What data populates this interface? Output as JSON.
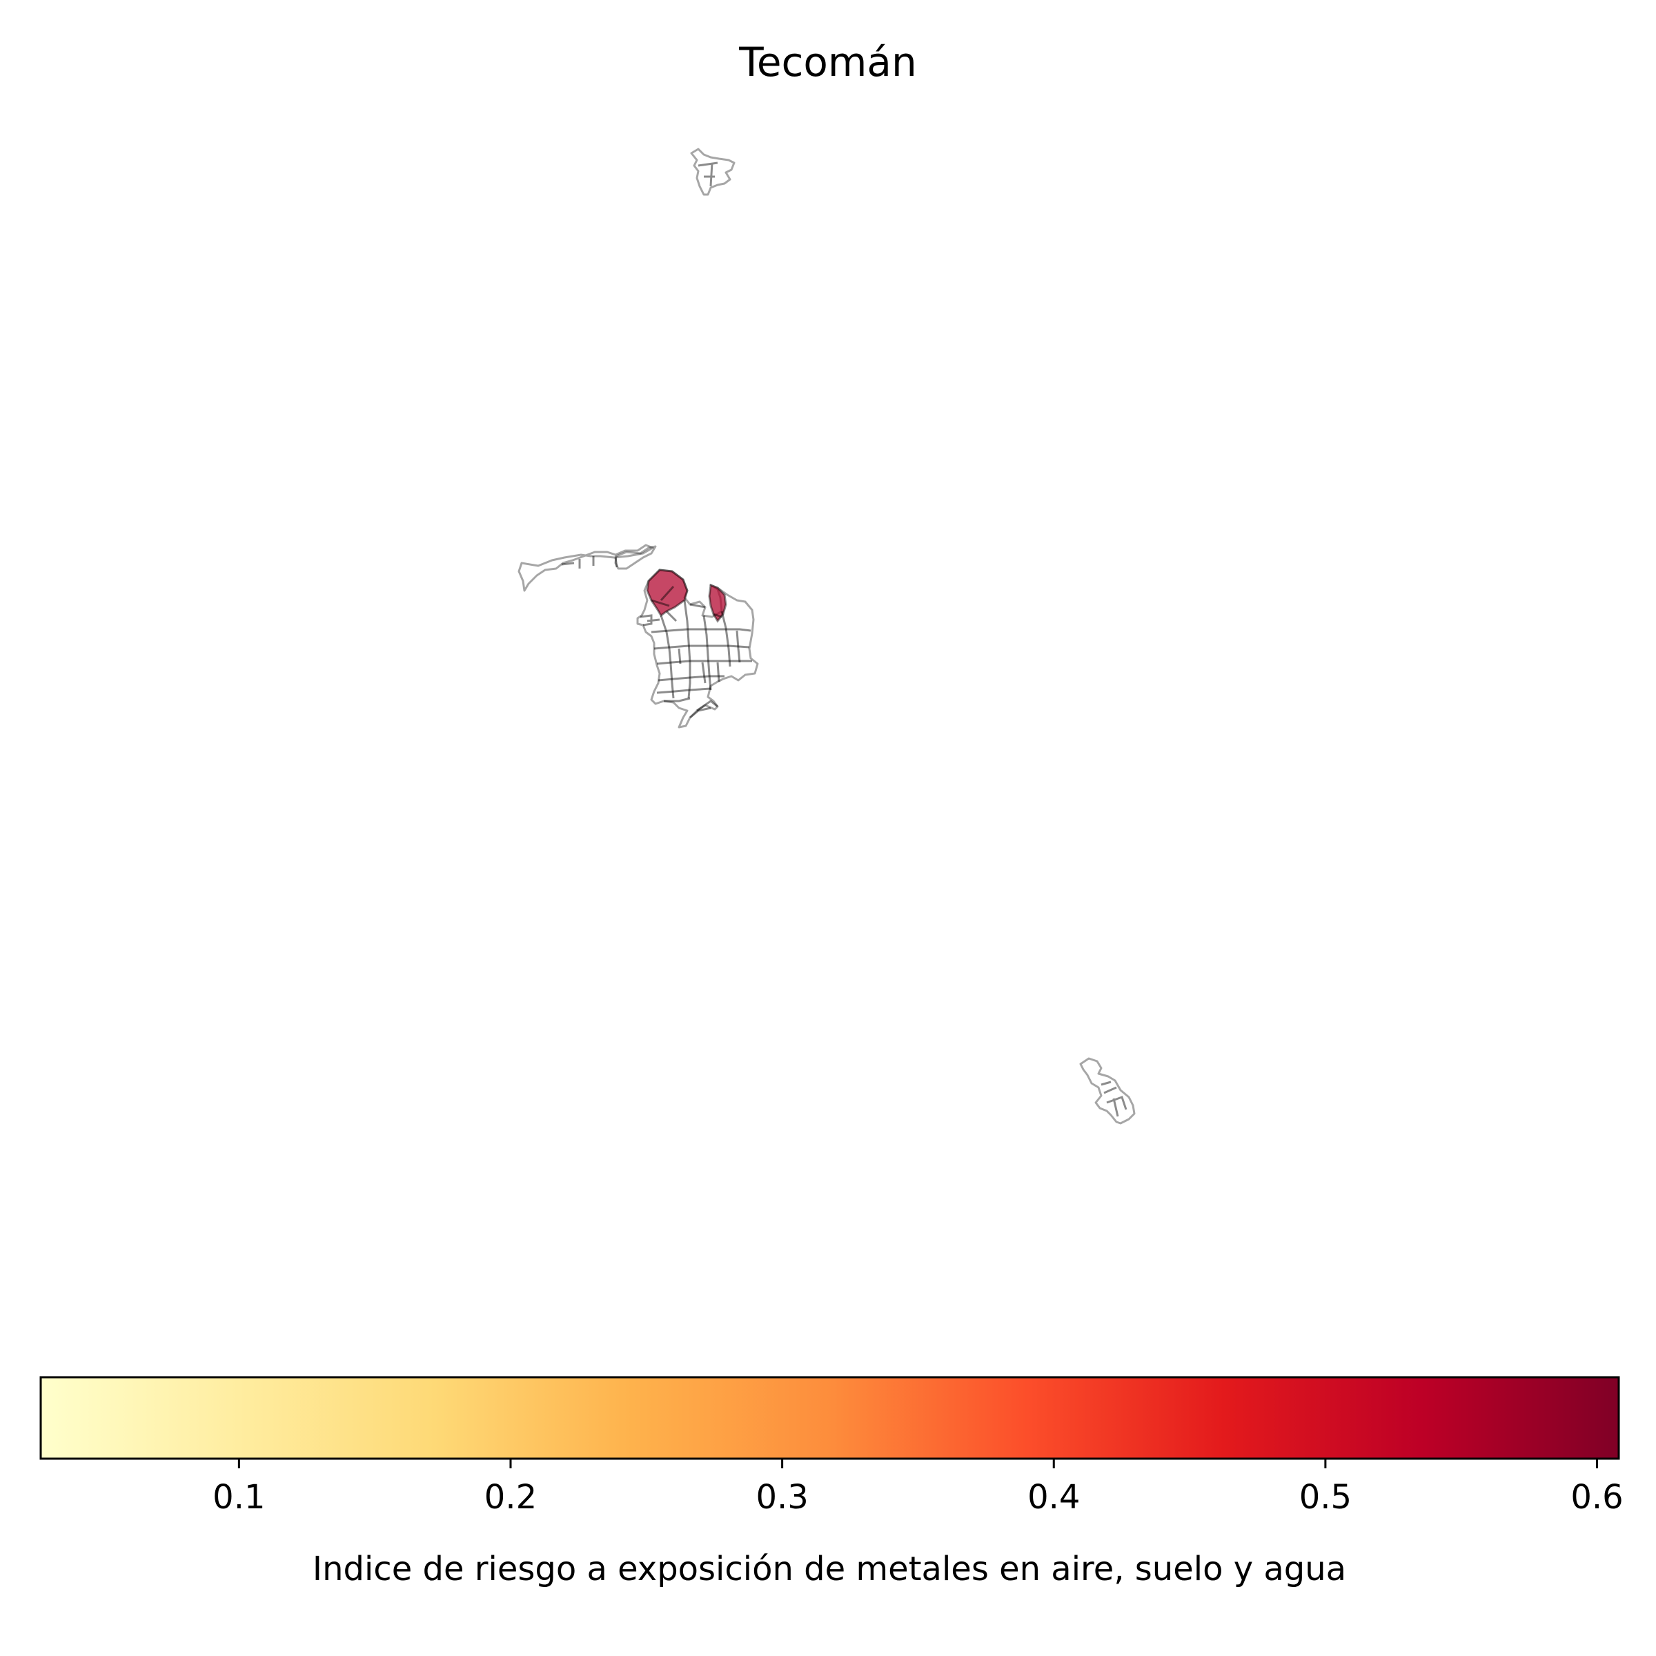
{
  "title": "Tecomán",
  "colorbar": {
    "label": "Indice de riesgo a exposición de metales en aire, suelo y agua",
    "min": 0.027,
    "max": 0.608,
    "colormap": "YlOrRd",
    "ticks": [
      {
        "value": 0.1,
        "label": "0.1"
      },
      {
        "value": 0.2,
        "label": "0.2"
      },
      {
        "value": 0.3,
        "label": "0.3"
      },
      {
        "value": 0.4,
        "label": "0.4"
      },
      {
        "value": 0.5,
        "label": "0.5"
      },
      {
        "value": 0.6,
        "label": "0.6"
      }
    ],
    "gradient_stops": [
      "#ffffcc",
      "#ffeda0",
      "#fed976",
      "#feb24c",
      "#fd8d3c",
      "#fc4e2a",
      "#e31a1c",
      "#bd0026",
      "#800026"
    ]
  },
  "map": {
    "regions": [
      "north-locality",
      "west-locality",
      "central-city",
      "southeast-locality"
    ],
    "highlight_color": "#b0002a"
  }
}
